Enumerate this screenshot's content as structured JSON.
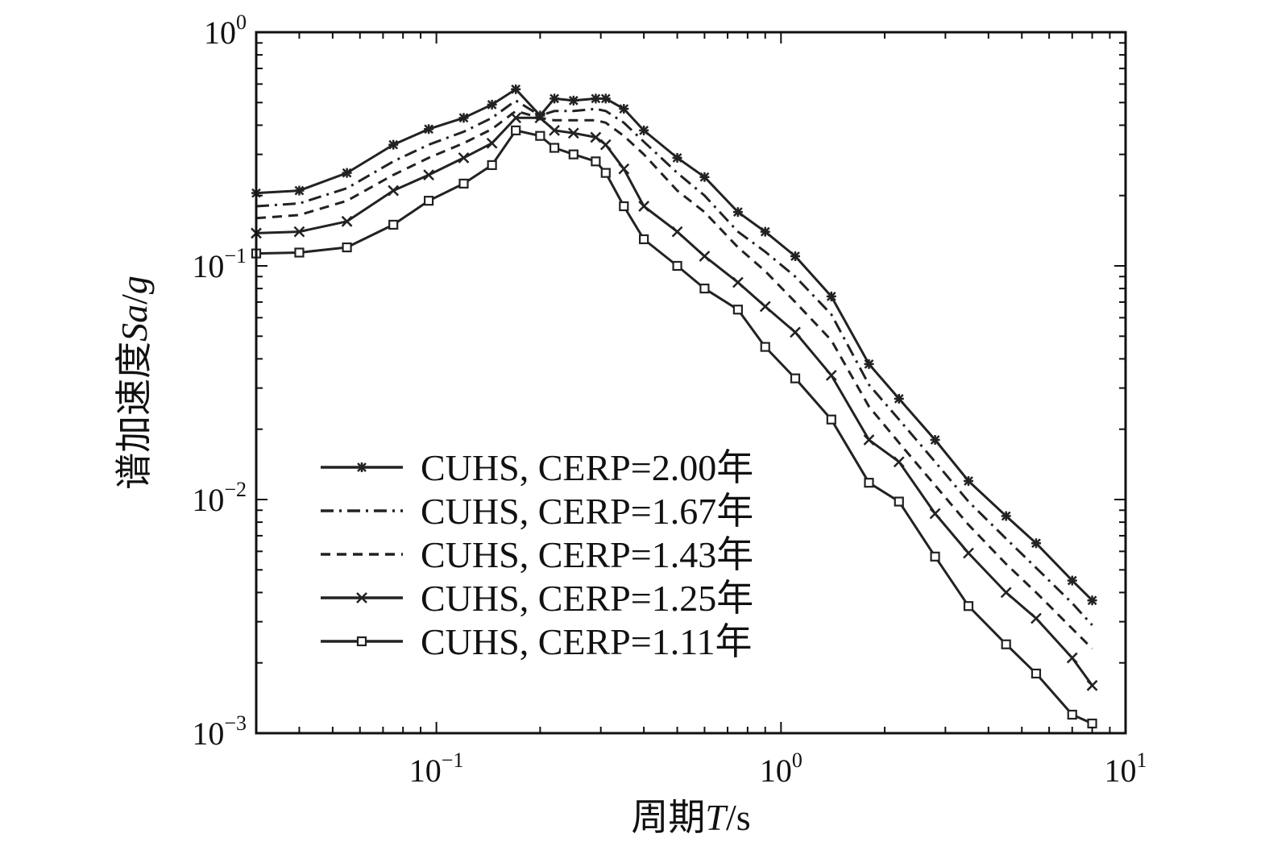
{
  "chart_data": {
    "type": "line",
    "xscale": "log",
    "yscale": "log",
    "xlim": [
      0.03,
      10
    ],
    "ylim": [
      0.001,
      1
    ],
    "x_ticks": [
      {
        "value": 0.1,
        "base": "10",
        "exp": "−1"
      },
      {
        "value": 1,
        "base": "10",
        "exp": "0"
      },
      {
        "value": 10,
        "base": "10",
        "exp": "1"
      }
    ],
    "y_ticks": [
      {
        "value": 1,
        "base": "10",
        "exp": "0"
      },
      {
        "value": 0.1,
        "base": "10",
        "exp": "−1"
      },
      {
        "value": 0.01,
        "base": "10",
        "exp": "−2"
      },
      {
        "value": 0.001,
        "base": "10",
        "exp": "−3"
      }
    ],
    "xlabel_prefix": "周期",
    "xlabel_var": "T",
    "xlabel_unit": "/s",
    "ylabel_prefix": "谱加速度",
    "ylabel_var": "Sa",
    "ylabel_sep": "/",
    "ylabel_unit": "g",
    "legend_position": "lower-left",
    "grid": false,
    "x": [
      0.03,
      0.04,
      0.055,
      0.075,
      0.095,
      0.12,
      0.145,
      0.17,
      0.2,
      0.22,
      0.25,
      0.29,
      0.31,
      0.35,
      0.4,
      0.5,
      0.6,
      0.75,
      0.9,
      1.1,
      1.4,
      1.8,
      2.2,
      2.8,
      3.5,
      4.5,
      5.5,
      7.0,
      8.0
    ],
    "series": [
      {
        "name": "CUHS, CERP=2.00年",
        "style": "solid",
        "marker": "star",
        "values": [
          0.205,
          0.21,
          0.25,
          0.33,
          0.385,
          0.43,
          0.49,
          0.57,
          0.44,
          0.52,
          0.51,
          0.52,
          0.52,
          0.47,
          0.38,
          0.29,
          0.24,
          0.17,
          0.14,
          0.11,
          0.074,
          0.038,
          0.027,
          0.018,
          0.012,
          0.0085,
          0.0065,
          0.0045,
          0.0037
        ]
      },
      {
        "name": "CUHS, CERP=1.67年",
        "style": "dashdot",
        "marker": "none",
        "values": [
          0.18,
          0.185,
          0.215,
          0.28,
          0.33,
          0.375,
          0.43,
          0.51,
          0.44,
          0.46,
          0.46,
          0.47,
          0.46,
          0.41,
          0.34,
          0.25,
          0.2,
          0.14,
          0.115,
          0.09,
          0.062,
          0.031,
          0.022,
          0.0145,
          0.0098,
          0.0068,
          0.0051,
          0.0036,
          0.0029
        ]
      },
      {
        "name": "CUHS, CERP=1.43年",
        "style": "dashed",
        "marker": "none",
        "values": [
          0.16,
          0.165,
          0.19,
          0.245,
          0.29,
          0.335,
          0.385,
          0.46,
          0.43,
          0.42,
          0.42,
          0.42,
          0.41,
          0.36,
          0.3,
          0.21,
          0.17,
          0.12,
          0.095,
          0.07,
          0.048,
          0.025,
          0.0175,
          0.0115,
          0.0078,
          0.0053,
          0.004,
          0.0028,
          0.0023
        ]
      },
      {
        "name": "CUHS, CERP=1.25年",
        "style": "solid",
        "marker": "x",
        "values": [
          0.138,
          0.14,
          0.155,
          0.21,
          0.245,
          0.29,
          0.335,
          0.43,
          0.43,
          0.38,
          0.37,
          0.355,
          0.33,
          0.26,
          0.18,
          0.14,
          0.11,
          0.085,
          0.067,
          0.052,
          0.034,
          0.018,
          0.0145,
          0.0087,
          0.0059,
          0.004,
          0.0031,
          0.0021,
          0.0016
        ]
      },
      {
        "name": "CUHS, CERP=1.11年",
        "style": "solid",
        "marker": "square",
        "values": [
          0.113,
          0.114,
          0.12,
          0.15,
          0.19,
          0.225,
          0.27,
          0.38,
          0.36,
          0.32,
          0.3,
          0.28,
          0.25,
          0.18,
          0.13,
          0.1,
          0.08,
          0.065,
          0.045,
          0.033,
          0.022,
          0.0118,
          0.0098,
          0.0057,
          0.0035,
          0.0024,
          0.0018,
          0.0012,
          0.0011
        ]
      }
    ]
  }
}
